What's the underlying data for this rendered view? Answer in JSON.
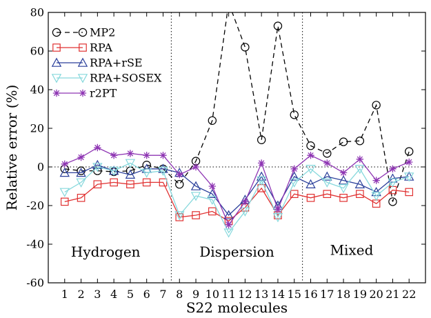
{
  "chart_data": {
    "type": "line",
    "xlabel": "S22 molecules",
    "ylabel": "Relative error (%)",
    "ylim": [
      -60,
      80
    ],
    "yticks": [
      -60,
      -40,
      -20,
      0,
      20,
      40,
      60,
      80
    ],
    "ytick_labels": [
      "-60",
      "-40",
      "-20",
      "0",
      "20",
      "40",
      "60",
      "80"
    ],
    "x": [
      1,
      2,
      3,
      4,
      5,
      6,
      7,
      8,
      9,
      10,
      11,
      12,
      13,
      14,
      15,
      16,
      17,
      18,
      19,
      20,
      21,
      22
    ],
    "xtick_labels": [
      "1",
      "2",
      "3",
      "4",
      "5",
      "6",
      "7",
      "8",
      "9",
      "10",
      "11",
      "12",
      "13",
      "14",
      "15",
      "16",
      "17",
      "18",
      "19",
      "20",
      "21",
      "22"
    ],
    "grid": false,
    "legend_position": "top-left",
    "reference_line": 0,
    "region_separators": [
      7.5,
      15.5
    ],
    "regions": [
      {
        "label": "Hydrogen",
        "x": 3.5,
        "y": -44
      },
      {
        "label": "Dispersion",
        "x": 11.5,
        "y": -44
      },
      {
        "label": "Mixed",
        "x": 18.5,
        "y": -43
      }
    ],
    "series": [
      {
        "name": "MP2",
        "color": "#000000",
        "dash": "dashed",
        "marker": "circle",
        "values": [
          -1,
          -2,
          -2,
          -2.5,
          -2,
          1,
          -1,
          -9,
          3,
          24,
          85,
          62,
          14,
          73,
          27,
          11,
          7,
          13,
          13.5,
          32,
          -18,
          8
        ]
      },
      {
        "name": "RPA",
        "color": "#e03030",
        "dash": "solid",
        "marker": "square",
        "values": [
          -18,
          -16,
          -9,
          -8,
          -9,
          -8,
          -8,
          -26,
          -25,
          -23,
          -28,
          -21,
          -11,
          -25,
          -14,
          -16,
          -14,
          -16,
          -14,
          -19,
          -12,
          -13
        ]
      },
      {
        "name": "RPA+rSE",
        "color": "#2a3f9a",
        "dash": "solid",
        "marker": "triangle-up",
        "values": [
          -3,
          -3,
          1,
          -2,
          -4,
          -1,
          -1,
          -3,
          -10,
          -14,
          -25,
          -17,
          -5,
          -20,
          -5,
          -9,
          -5,
          -7,
          -9,
          -13,
          -6,
          -5
        ]
      },
      {
        "name": "RPA+SOSEX",
        "color": "#86d8dc",
        "dash": "solid",
        "marker": "triangle-down",
        "values": [
          -13,
          -8,
          0,
          -2,
          2,
          -3,
          -2,
          -25,
          -15,
          -17,
          -34,
          -23,
          -7,
          -26,
          -8,
          -1,
          -8,
          -11,
          -1,
          -15,
          -8,
          -5
        ]
      },
      {
        "name": "r2PT",
        "color": "#8e35b3",
        "dash": "solid",
        "marker": "asterisk",
        "values": [
          1.5,
          5,
          10,
          6,
          7,
          6,
          6,
          -4,
          0,
          -10,
          -30,
          -18,
          2,
          -22,
          -1,
          6,
          2,
          -3,
          4,
          -7,
          -1,
          2.5
        ]
      }
    ]
  }
}
